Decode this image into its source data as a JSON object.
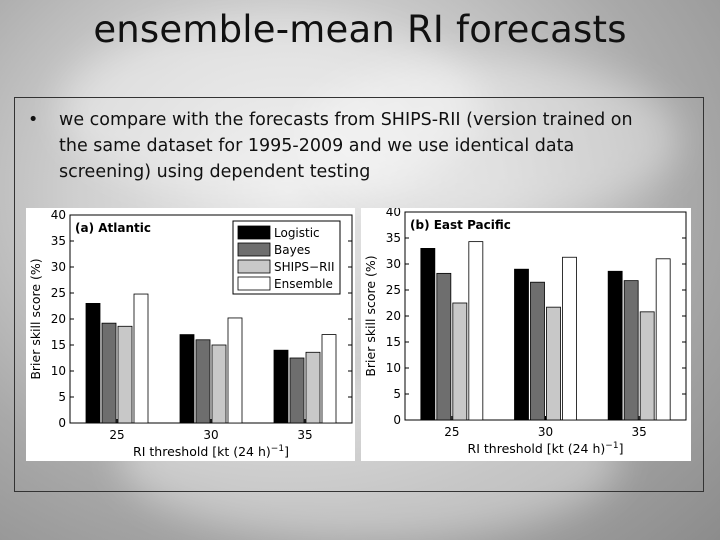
{
  "slide": {
    "title": "ensemble-mean RI forecasts",
    "bullet": "we compare with the forecasts from SHIPS-RII (version trained on the same dataset for 1995-2009 and we use identical data screening) using dependent testing"
  },
  "colors": {
    "Logistic": "#000000",
    "Bayes": "#6e6e6e",
    "SHIPS-RII": "#c8c8c8",
    "Ensemble": "#ffffff"
  },
  "chart_data": [
    {
      "type": "bar",
      "title": "(a) Atlantic",
      "categories": [
        "25",
        "30",
        "35"
      ],
      "xlabel": "RI threshold [kt (24 h)",
      "xlabel_sup": "−1",
      "xlabel_end": "]",
      "ylabel": "Brier skill score (%)",
      "ylim": [
        0,
        40
      ],
      "yticks": [
        0,
        5,
        10,
        15,
        20,
        25,
        30,
        35,
        40
      ],
      "legend": "top-right",
      "series": [
        {
          "name": "Logistic",
          "values": [
            23,
            17,
            14
          ]
        },
        {
          "name": "Bayes",
          "values": [
            19.2,
            16,
            12.5
          ]
        },
        {
          "name": "SHIPS−RII",
          "values": [
            18.6,
            15,
            13.6
          ]
        },
        {
          "name": "Ensemble",
          "values": [
            24.8,
            20.2,
            17
          ]
        }
      ]
    },
    {
      "type": "bar",
      "title": "(b) East Pacific",
      "categories": [
        "25",
        "30",
        "35"
      ],
      "xlabel": "RI threshold [kt (24 h)",
      "xlabel_sup": "−1",
      "xlabel_end": "]",
      "ylabel": "Brier skill score (%)",
      "ylim": [
        0,
        40
      ],
      "yticks": [
        0,
        5,
        10,
        15,
        20,
        25,
        30,
        35,
        40
      ],
      "legend": "none",
      "series": [
        {
          "name": "Logistic",
          "values": [
            33,
            29,
            28.6
          ]
        },
        {
          "name": "Bayes",
          "values": [
            28.2,
            26.5,
            26.8
          ]
        },
        {
          "name": "SHIPS−RII",
          "values": [
            22.5,
            21.7,
            20.8
          ]
        },
        {
          "name": "Ensemble",
          "values": [
            34.3,
            31.3,
            31
          ]
        }
      ]
    }
  ]
}
